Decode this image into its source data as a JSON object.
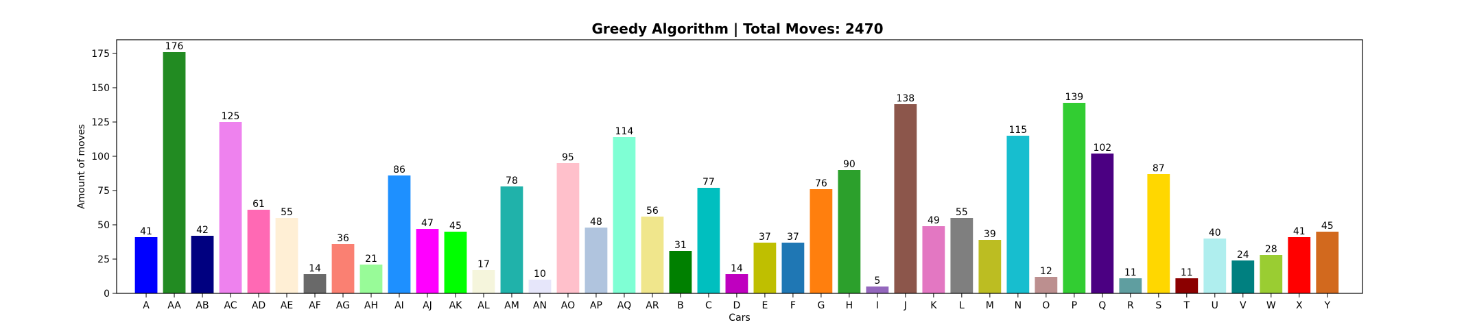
{
  "chart_data": {
    "type": "bar",
    "title": "Greedy Algorithm | Total Moves: 2470",
    "xlabel": "Cars",
    "ylabel": "Amount of moves",
    "ylim": [
      0,
      185
    ],
    "yticks": [
      0,
      25,
      50,
      75,
      100,
      125,
      150,
      175
    ],
    "grid": false,
    "categories": [
      "A",
      "AA",
      "AB",
      "AC",
      "AD",
      "AE",
      "AF",
      "AG",
      "AH",
      "AI",
      "AJ",
      "AK",
      "AL",
      "AM",
      "AN",
      "AO",
      "AP",
      "AQ",
      "AR",
      "B",
      "C",
      "D",
      "E",
      "F",
      "G",
      "H",
      "I",
      "J",
      "K",
      "L",
      "M",
      "N",
      "O",
      "P",
      "Q",
      "R",
      "S",
      "T",
      "U",
      "V",
      "W",
      "X",
      "Y"
    ],
    "values": [
      41,
      176,
      42,
      125,
      61,
      55,
      14,
      36,
      21,
      86,
      47,
      45,
      17,
      78,
      10,
      95,
      48,
      114,
      56,
      31,
      77,
      14,
      37,
      37,
      76,
      90,
      5,
      138,
      49,
      55,
      39,
      115,
      12,
      139,
      102,
      11,
      87,
      11,
      40,
      24,
      28,
      41,
      45
    ],
    "colors": [
      "#0000ff",
      "#228b22",
      "#000080",
      "#ee82ee",
      "#ff69b4",
      "#ffefd5",
      "#696969",
      "#fa8072",
      "#98fb98",
      "#1e90ff",
      "#ff00ff",
      "#00ff00",
      "#f5f5dc",
      "#20b2aa",
      "#e6e6fa",
      "#ffc0cb",
      "#b0c4de",
      "#7fffd4",
      "#f0e68c",
      "#008000",
      "#00bfbf",
      "#bf00bf",
      "#bfbf00",
      "#1f77b4",
      "#ff7f0e",
      "#2ca02c",
      "#9467bd",
      "#8c564b",
      "#e377c2",
      "#7f7f7f",
      "#bcbd22",
      "#17becf",
      "#bc8f8f",
      "#32cd32",
      "#4b0082",
      "#5f9ea0",
      "#ffd700",
      "#8b0000",
      "#afeeee",
      "#008080",
      "#9acd32",
      "#ff0000",
      "#d2691e"
    ]
  }
}
